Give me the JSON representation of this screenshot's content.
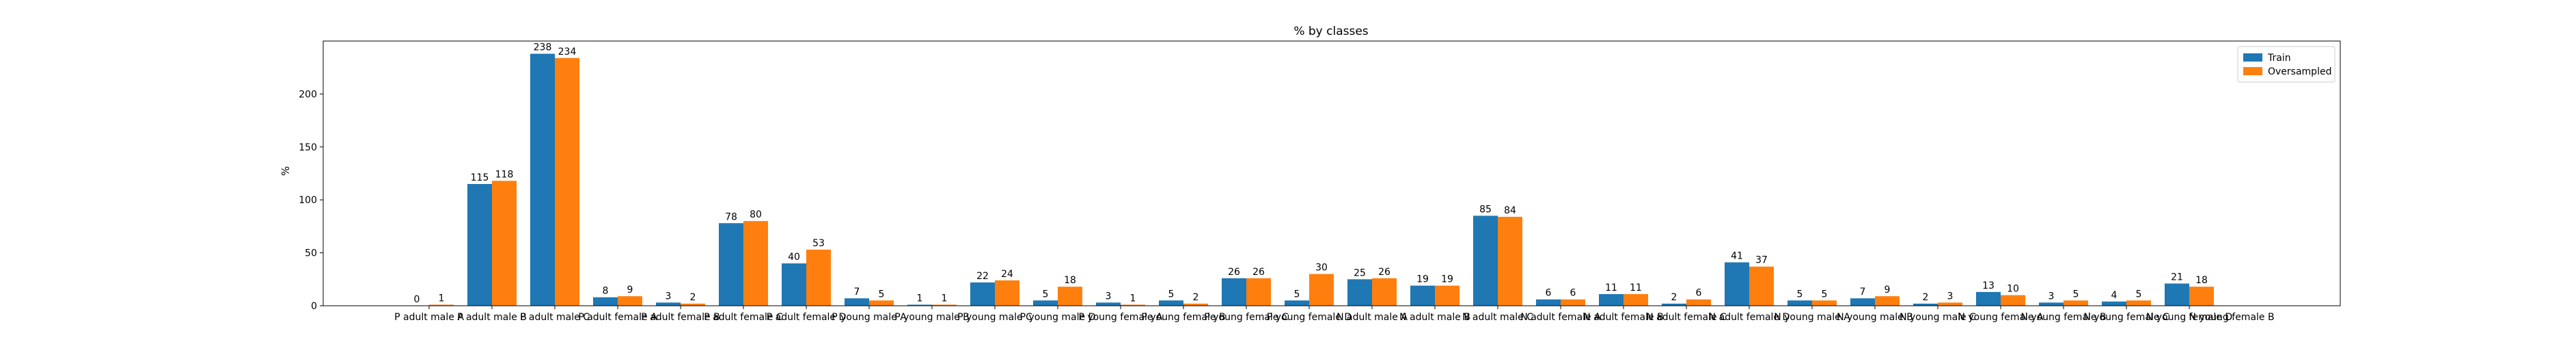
{
  "chart_data": {
    "type": "bar",
    "title": "% by classes",
    "xlabel": "",
    "ylabel": "%",
    "ylim": [
      0,
      250
    ],
    "yticks": [
      0,
      50,
      100,
      150,
      200
    ],
    "legend_position": "top-right",
    "categories": [
      "P adult male A",
      "P adult male B",
      "P adult male C",
      "P adult female A",
      "P adult female B",
      "P adult female C",
      "P adult female D",
      "P young male A",
      "P young male B",
      "P young male C",
      "P young male D",
      "P young female A",
      "P young female B",
      "P young female C",
      "P young female D",
      "N adult male A",
      "N adult male B",
      "N adult male C",
      "N adult female A",
      "N adult female B",
      "N adult female C",
      "N adult female D",
      "N young male A",
      "N young male B",
      "N young male C",
      "N young female A",
      "N young female B",
      "N young female C",
      "N young female D",
      "N young female B"
    ],
    "series": [
      {
        "name": "Train",
        "color": "#1f77b4",
        "values": [
          0,
          115,
          238,
          8,
          3,
          78,
          40,
          7,
          1,
          22,
          5,
          3,
          5,
          26,
          5,
          25,
          19,
          85,
          6,
          11,
          2,
          41,
          5,
          7,
          2,
          13,
          3,
          4,
          21,
          0
        ]
      },
      {
        "name": "Oversampled",
        "color": "#ff7f0e",
        "values": [
          1,
          118,
          234,
          9,
          2,
          80,
          53,
          5,
          1,
          24,
          18,
          1,
          2,
          26,
          30,
          26,
          19,
          84,
          6,
          11,
          6,
          37,
          5,
          9,
          3,
          10,
          5,
          5,
          18,
          0
        ]
      }
    ]
  }
}
